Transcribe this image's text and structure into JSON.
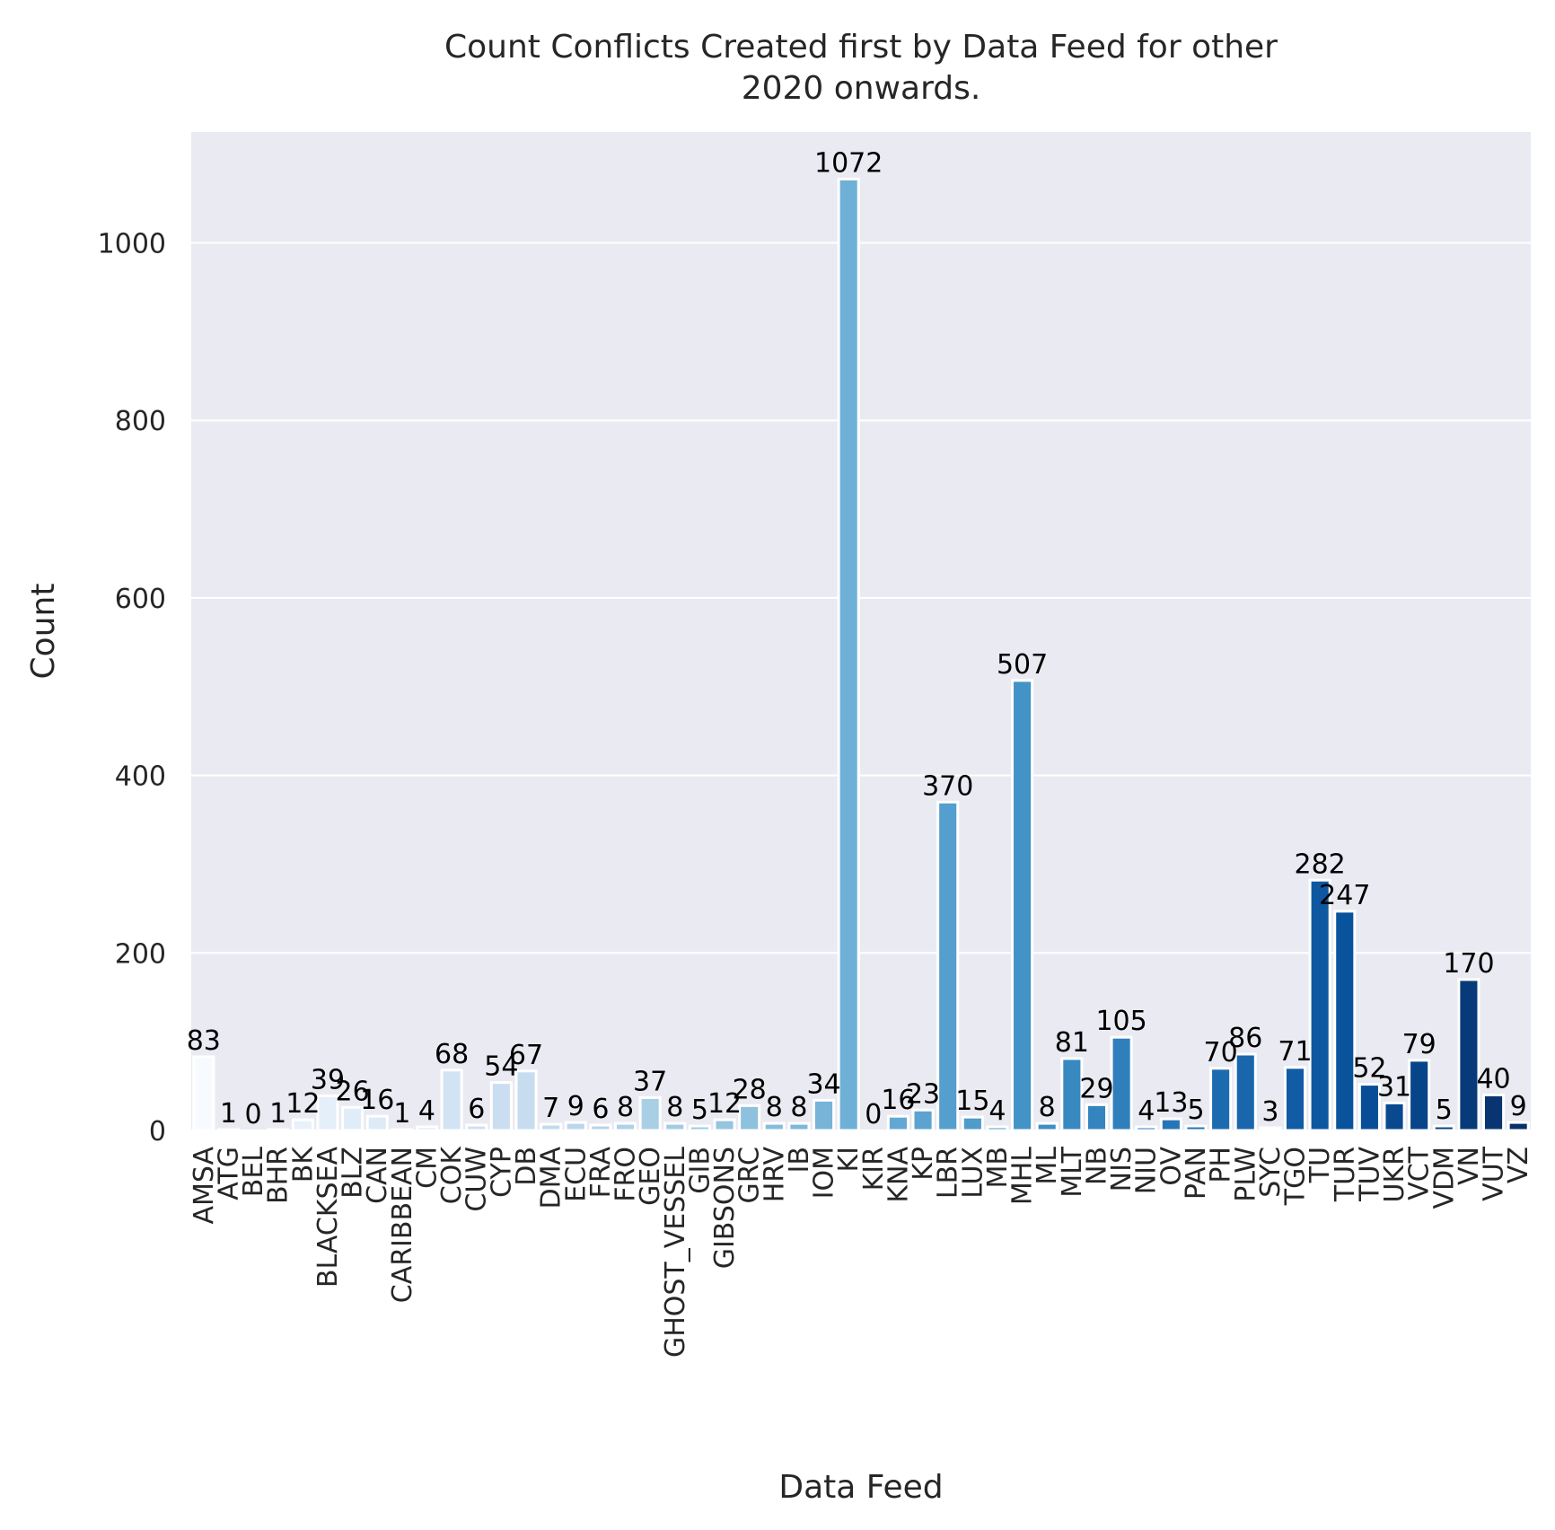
{
  "chart_data": {
    "type": "bar",
    "title": [
      "Count Conflicts Created first by Data Feed for other",
      "2020 onwards."
    ],
    "xlabel": "Data Feed",
    "ylabel": "Count",
    "ylim": [
      0,
      1125
    ],
    "yticks": [
      0,
      200,
      400,
      600,
      800,
      1000
    ],
    "grid": true,
    "palette": "Blues",
    "colors": {
      "background": "#eaeaf2",
      "grid": "#ffffff",
      "bar_edge": "#ffffff",
      "palette_light": "#f7fbff",
      "palette_dark": "#08306b"
    },
    "categories": [
      "AMSA",
      "ATG",
      "BEL",
      "BHR",
      "BK",
      "BLACKSEA",
      "BLZ",
      "CAN",
      "CARIBBEAN",
      "CM",
      "COK",
      "CUW",
      "CYP",
      "DB",
      "DMA",
      "ECU",
      "FRA",
      "FRO",
      "GEO",
      "GHOST_VESSEL",
      "GIB",
      "GIBSONS",
      "GRC",
      "HRV",
      "IB",
      "IOM",
      "KI",
      "KIR",
      "KNA",
      "KP",
      "LBR",
      "LUX",
      "MB",
      "MHL",
      "ML",
      "MLT",
      "NB",
      "NIS",
      "NIU",
      "OV",
      "PAN",
      "PH",
      "PLW",
      "SYC",
      "TGO",
      "TU",
      "TUR",
      "TUV",
      "UKR",
      "VCT",
      "VDM",
      "VN",
      "VUT",
      "VZ"
    ],
    "values": [
      83,
      1,
      0,
      1,
      12,
      39,
      26,
      16,
      1,
      4,
      68,
      6,
      54,
      67,
      7,
      9,
      6,
      8,
      37,
      8,
      5,
      12,
      28,
      8,
      8,
      34,
      1072,
      0,
      16,
      23,
      370,
      15,
      4,
      507,
      8,
      81,
      29,
      105,
      4,
      13,
      5,
      70,
      86,
      3,
      71,
      282,
      247,
      52,
      31,
      79,
      5,
      170,
      40,
      9
    ],
    "data_labels": [
      "83",
      "1",
      "0",
      "1",
      "12",
      "39",
      "26",
      "16",
      "1",
      "4",
      "68",
      "6",
      "54",
      "67",
      "7",
      "9",
      "6",
      "8",
      "37",
      "8",
      "5",
      "12",
      "28",
      "8",
      "8",
      "34",
      "1072",
      "0",
      "16",
      "23",
      "370",
      "15",
      "4",
      "507",
      "8",
      "81",
      "29",
      "105",
      "4",
      "13",
      "5",
      "70",
      "86",
      "3",
      "71",
      "282",
      "247",
      "52",
      "31",
      "79",
      "5",
      "170",
      "40",
      "9"
    ]
  }
}
